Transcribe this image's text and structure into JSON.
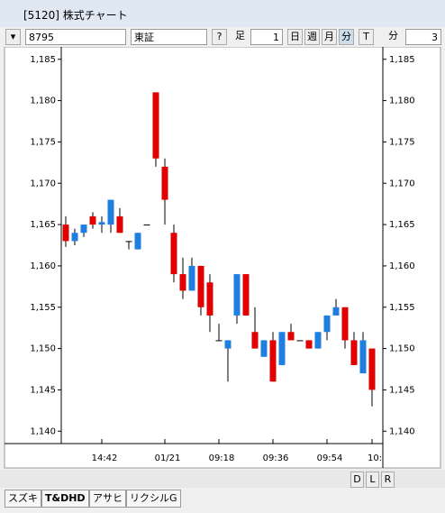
{
  "window": {
    "title": "[5120] 株式チャート"
  },
  "toolbar": {
    "symbol": "8795",
    "market": "東証",
    "help": "?",
    "bar_label": "足",
    "bar_count": "1",
    "day": "日",
    "week": "週",
    "month": "月",
    "minute": "分",
    "tick": "T",
    "interval_label": "分",
    "interval": "3"
  },
  "bottom_bar": {
    "buttons": [
      "D",
      "L",
      "R"
    ]
  },
  "tabs": [
    "スズキ",
    "T&DHD",
    "アサヒ",
    "リクシルG"
  ],
  "chart_data": {
    "type": "candlestick",
    "up_color": "#1e7fe0",
    "down_color": "#e00000",
    "categories": [
      null,
      null,
      null,
      null,
      "14:42",
      null,
      null,
      null,
      null,
      null,
      null,
      "01/21",
      null,
      null,
      null,
      null,
      null,
      "09:18",
      null,
      null,
      null,
      null,
      null,
      "09:36",
      null,
      null,
      null,
      null,
      null,
      "09:54",
      null,
      null,
      null,
      null,
      "10:"
    ],
    "open": [
      1165,
      1163,
      1164,
      1166,
      1165,
      1165,
      1166,
      1163,
      1162,
      1165,
      1181,
      1172,
      1164,
      1159,
      1157,
      1160,
      1158,
      1151,
      1150,
      1154,
      1159,
      1152,
      1149,
      1151,
      1148,
      1152,
      1151,
      1151,
      1150,
      1152,
      1154,
      1155,
      1151,
      1147,
      1150
    ],
    "high": [
      1166,
      1164.5,
      1165,
      1166.5,
      1166,
      1168,
      1167,
      1163,
      1164,
      1165,
      1181,
      1173,
      1165,
      1161,
      1161,
      1160,
      1159,
      1153,
      1151,
      1159,
      1159,
      1155,
      1151,
      1152,
      1152,
      1153,
      1151,
      1151,
      1152,
      1154,
      1156,
      1155,
      1152,
      1152,
      1150
    ],
    "low": [
      1162.3,
      1162.5,
      1163.5,
      1164.5,
      1164,
      1164,
      1164,
      1162,
      1162,
      1165,
      1172,
      1165,
      1158,
      1156,
      1157,
      1154,
      1152,
      1151,
      1146,
      1153,
      1154,
      1150,
      1149,
      1146,
      1148,
      1151,
      1151,
      1150,
      1150,
      1151,
      1154,
      1150,
      1148,
      1147,
      1143
    ],
    "close": [
      1163,
      1164,
      1165,
      1165,
      1165.3,
      1168,
      1164,
      1163,
      1164,
      1165,
      1173,
      1168,
      1159,
      1157,
      1160,
      1155,
      1154,
      1151,
      1151,
      1159,
      1154,
      1150,
      1151,
      1146,
      1152,
      1151,
      1151,
      1150,
      1152,
      1154,
      1155,
      1151,
      1148,
      1151,
      1145
    ],
    "ylim": [
      1138.5,
      1186.5
    ],
    "yticks": [
      {
        "value": 1140,
        "label": "1,140"
      },
      {
        "value": 1145,
        "label": "1,145"
      },
      {
        "value": 1150,
        "label": "1,150"
      },
      {
        "value": 1155,
        "label": "1,155"
      },
      {
        "value": 1160,
        "label": "1,160"
      },
      {
        "value": 1165,
        "label": "1,165"
      },
      {
        "value": 1170,
        "label": "1,170"
      },
      {
        "value": 1175,
        "label": "1,175"
      },
      {
        "value": 1180,
        "label": "1,180"
      },
      {
        "value": 1185,
        "label": "1,185"
      }
    ]
  }
}
